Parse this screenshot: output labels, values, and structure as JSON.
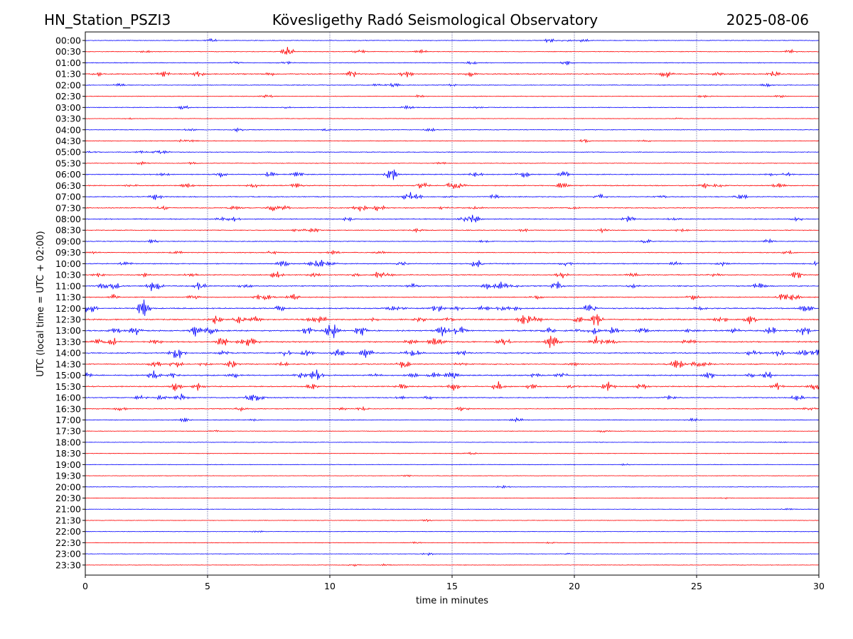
{
  "chart_data": {
    "type": "line",
    "station": "HN_Station_PSZI3",
    "title": "Kövesligethy Radó Seismological Observatory",
    "date": "2025-08-06",
    "xlabel": "time in minutes",
    "ylabel": "UTC (local time = UTC + 02:00)",
    "xlim": [
      0,
      30
    ],
    "x_ticks": [
      0,
      5,
      10,
      15,
      20,
      25,
      30
    ],
    "vertical_grid": [
      5,
      10,
      15,
      20,
      25
    ],
    "trace_colors": [
      "#0000ff",
      "#ff0000"
    ],
    "colors": {
      "even_row": "#0000ff",
      "odd_row": "#ff0000",
      "grid": "#1a1a6e",
      "axis": "#000000"
    },
    "y_tick_labels": [
      "00:00",
      "00:30",
      "01:00",
      "01:30",
      "02:00",
      "02:30",
      "03:00",
      "03:30",
      "04:00",
      "04:30",
      "05:00",
      "05:30",
      "06:00",
      "06:30",
      "07:00",
      "07:30",
      "08:00",
      "08:30",
      "09:00",
      "09:30",
      "10:00",
      "10:30",
      "11:00",
      "11:30",
      "12:00",
      "12:30",
      "13:00",
      "13:30",
      "14:00",
      "14:30",
      "15:00",
      "15:30",
      "16:00",
      "16:30",
      "17:00",
      "17:30",
      "18:00",
      "18:30",
      "19:00",
      "19:30",
      "20:00",
      "20:30",
      "21:00",
      "21:30",
      "22:00",
      "22:30",
      "23:00",
      "23:30"
    ],
    "row_activity": [
      0.25,
      0.2,
      0.3,
      0.7,
      0.35,
      0.25,
      0.3,
      0.15,
      0.3,
      0.25,
      0.3,
      0.2,
      0.55,
      0.6,
      0.5,
      0.6,
      0.65,
      0.4,
      0.35,
      0.45,
      0.6,
      0.55,
      0.7,
      0.55,
      0.85,
      0.9,
      1.0,
      0.9,
      0.85,
      0.7,
      0.85,
      0.7,
      0.6,
      0.45,
      0.3,
      0.12,
      0.1,
      0.1,
      0.1,
      0.1,
      0.1,
      0.1,
      0.1,
      0.1,
      0.1,
      0.12,
      0.12,
      0.12
    ],
    "bursts": [
      {
        "row": 1,
        "x": [
          8.3,
          11.2,
          13.7,
          28.8
        ]
      },
      {
        "row": 12,
        "x": [
          12.5,
          17.9,
          19.6
        ]
      },
      {
        "row": 13,
        "x": [
          13.8,
          15.0,
          19.5
        ]
      },
      {
        "row": 14,
        "x": [
          2.9,
          26.8
        ]
      },
      {
        "row": 15,
        "x": [
          7.6,
          12.0
        ]
      },
      {
        "row": 20,
        "x": [
          8.1,
          9.6,
          16.0
        ]
      },
      {
        "row": 21,
        "x": [
          7.8,
          12.0,
          19.5,
          29.1
        ]
      },
      {
        "row": 22,
        "x": [
          2.7,
          4.7,
          17.0,
          19.3
        ]
      },
      {
        "row": 23,
        "x": [
          8.5,
          28.5
        ]
      },
      {
        "row": 24,
        "x": [
          0.2,
          2.4,
          20.6,
          29.5
        ]
      },
      {
        "row": 25,
        "x": [
          5.3,
          20.9,
          27.2
        ]
      },
      {
        "row": 26,
        "x": [
          4.5,
          10.0,
          11.3,
          14.6,
          15.3,
          29.4
        ]
      },
      {
        "row": 27,
        "x": [
          1.1,
          5.6,
          14.3,
          20.9
        ]
      },
      {
        "row": 28,
        "x": [
          3.8,
          11.5,
          29.9
        ]
      },
      {
        "row": 29,
        "x": [
          3.7,
          13.0,
          24.3
        ]
      },
      {
        "row": 30,
        "x": [
          2.8,
          15.0,
          25.5,
          27.9
        ]
      },
      {
        "row": 31,
        "x": [
          3.7,
          4.6,
          15.1,
          29.8
        ]
      },
      {
        "row": 32,
        "x": [
          3.9,
          6.8
        ]
      }
    ]
  }
}
